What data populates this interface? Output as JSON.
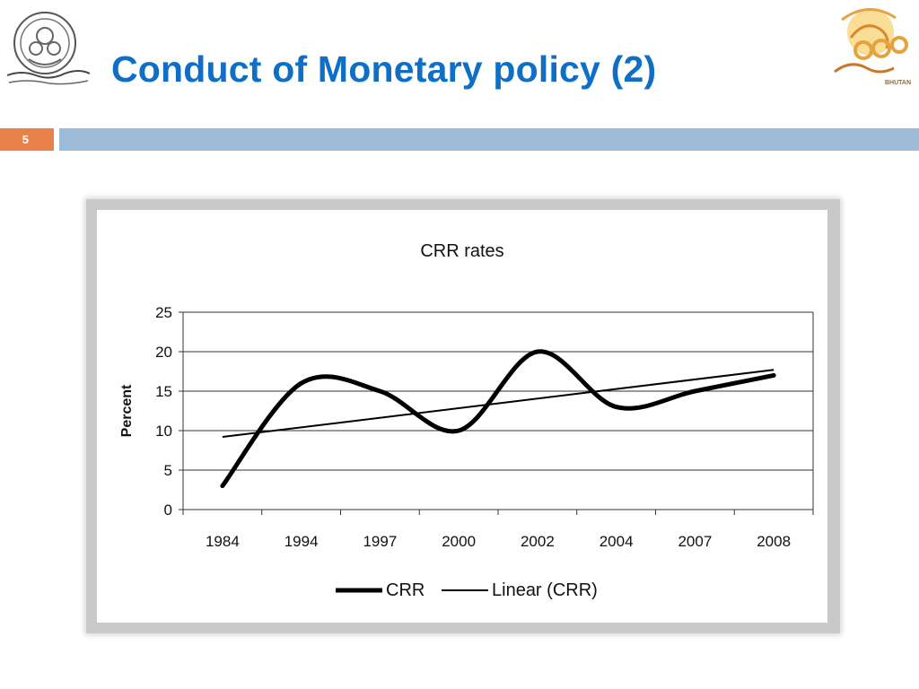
{
  "slide": {
    "title": "Conduct of Monetary policy (2)",
    "slide_number": "5",
    "colors": {
      "title": "#0f6fc6",
      "number_tab": "#e8824a",
      "band": "#9bbbd6"
    }
  },
  "logos": {
    "left": {
      "icon": "university-seal-icon",
      "text": ""
    },
    "right": {
      "icon": "bhutan-emblem-logo-icon",
      "text": "BHUTAN"
    }
  },
  "chart_data": {
    "type": "line",
    "title": "CRR rates",
    "xlabel": "",
    "ylabel": "Percent",
    "categories": [
      "1984",
      "1994",
      "1997",
      "2000",
      "2002",
      "2004",
      "2007",
      "2008"
    ],
    "series": [
      {
        "name": "CRR",
        "values": [
          3,
          16,
          15,
          10,
          20,
          13,
          15,
          17
        ],
        "style": "thick"
      },
      {
        "name": "Linear (CRR)",
        "values": [
          9.2,
          10.4,
          11.6,
          12.8,
          14.1,
          15.3,
          16.5,
          17.7
        ],
        "style": "thin"
      }
    ],
    "ylim": [
      0,
      25
    ],
    "yticks": [
      "0",
      "5",
      "10",
      "15",
      "20",
      "25"
    ],
    "grid": true,
    "legend_position": "bottom"
  }
}
